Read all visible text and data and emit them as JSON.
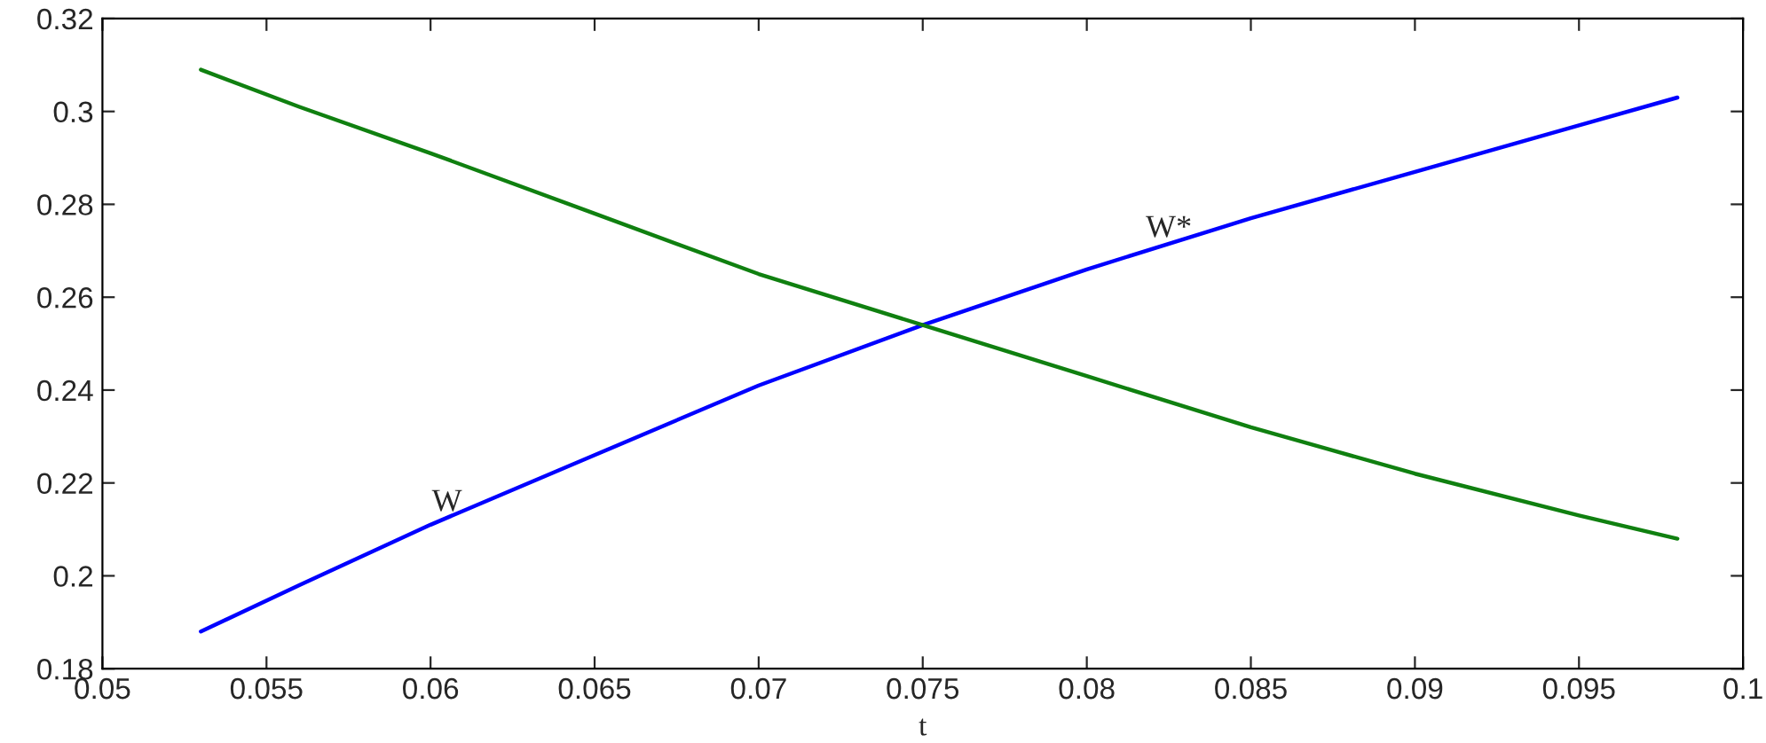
{
  "chart_data": {
    "type": "line",
    "xlabel": "t",
    "xlim": [
      0.05,
      0.1
    ],
    "xticks": [
      0.05,
      0.055,
      0.06,
      0.065,
      0.07,
      0.075,
      0.08,
      0.085,
      0.09,
      0.095,
      0.1
    ],
    "ylim": [
      0.18,
      0.32
    ],
    "yticks": [
      0.18,
      0.2,
      0.22,
      0.24,
      0.26,
      0.28,
      0.3,
      0.32
    ],
    "x": [
      0.053,
      0.056,
      0.06,
      0.065,
      0.07,
      0.075,
      0.08,
      0.085,
      0.09,
      0.095,
      0.098
    ],
    "series": [
      {
        "color": "#0000ff",
        "values": [
          0.188,
          0.198,
          0.211,
          0.226,
          0.241,
          0.254,
          0.266,
          0.277,
          0.287,
          0.297,
          0.303
        ]
      },
      {
        "color": "#108010",
        "values": [
          0.309,
          0.301,
          0.291,
          0.278,
          0.265,
          0.254,
          0.243,
          0.232,
          0.222,
          0.213,
          0.208
        ]
      }
    ],
    "annotations": [
      {
        "text": "W",
        "x": 0.0605,
        "y": 0.2125
      },
      {
        "text": "W*",
        "x": 0.0825,
        "y": 0.2715
      }
    ],
    "grid": false,
    "marker": "none",
    "line_style": "solid"
  }
}
